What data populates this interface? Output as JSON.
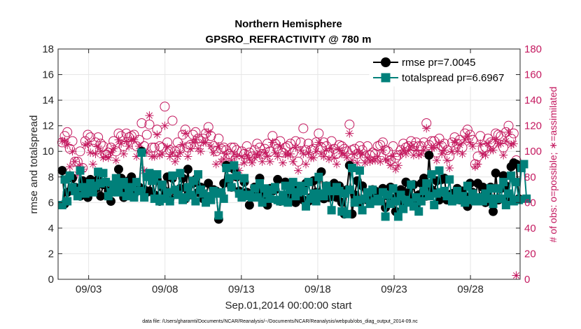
{
  "chart_data": {
    "type": "line",
    "title": "Northern Hemisphere",
    "subtitle": "GPSRO_REFRACTIVITY @ 780 m",
    "xlabel": "Sep.01,2014 00:00:00 start",
    "ylabel": "rmse and totalspread",
    "y2label": "# of obs: o=possible; ∗=assimilated",
    "footnote": "data file: /Users/gharamti/Documents/NCAR/Reanalysis/~/Documents/NCAR/Reanalysis/webpub/obs_diag_output_2014-09.nc",
    "xlim": [
      0.5,
      30.75
    ],
    "ylim": [
      0,
      18
    ],
    "y2lim": [
      0,
      180
    ],
    "x_ticks": [
      2.5,
      7.5,
      12.5,
      17.5,
      22.5,
      27.5
    ],
    "x_tick_labels": [
      "09/03",
      "09/08",
      "09/13",
      "09/18",
      "09/23",
      "09/28"
    ],
    "y_ticks": [
      0,
      2,
      4,
      6,
      8,
      10,
      12,
      14,
      16,
      18
    ],
    "y2_ticks": [
      0,
      20,
      40,
      60,
      80,
      100,
      120,
      140,
      160,
      180
    ],
    "grid": true,
    "legend": {
      "position": "top-right",
      "entries": [
        "rmse pr=7.0045",
        "totalspread pr=6.6967"
      ]
    },
    "colors": {
      "rmse": "#000000",
      "totalspread": "#00807a",
      "obs": "#c4195f",
      "grid": "#e6e6e6",
      "axis": "#262626"
    },
    "series": [
      {
        "name": "rmse",
        "axis": "left",
        "values": [
          8.5,
          5.9,
          6.8,
          8.1,
          7.9,
          7.2,
          7.0,
          6.5,
          7.7,
          6.9,
          6.4,
          7.8,
          6.9,
          7.1,
          7.8,
          6.5,
          7.4,
          7.6,
          6.9,
          6.1,
          7.2,
          7.3,
          8.6,
          7.9,
          6.4,
          7.0,
          7.7,
          8.0,
          6.6,
          6.9,
          7.2,
          10.0,
          7.0,
          6.8,
          6.9,
          8.2,
          6.6,
          7.8,
          6.1,
          7.2,
          6.9,
          8.0,
          6.3,
          7.9,
          6.9,
          6.8,
          7.1,
          7.9,
          6.3,
          8.6,
          6.6,
          7.5,
          7.8,
          6.8,
          7.2,
          6.3,
          6.4,
          7.5,
          6.5,
          7.0,
          6.9,
          4.7,
          6.7,
          7.5,
          8.9,
          7.7,
          7.2,
          8.6,
          8.0,
          6.9,
          6.5,
          7.6,
          6.8,
          5.8,
          6.6,
          7.2,
          6.9,
          7.9,
          6.3,
          6.8,
          5.8,
          7.1,
          6.9,
          7.0,
          7.8,
          6.1,
          6.2,
          7.6,
          6.4,
          6.9,
          7.3,
          6.0,
          6.7,
          7.0,
          6.2,
          7.5,
          6.1,
          6.4,
          7.7,
          6.8,
          6.5,
          8.4,
          6.3,
          7.3,
          6.4,
          6.8,
          7.5,
          6.4,
          7.3,
          6.0,
          5.1,
          7.0,
          8.9,
          5.1,
          6.6,
          7.7,
          6.0,
          7.3,
          6.3,
          6.2,
          6.5,
          7.0,
          6.9,
          6.3,
          6.8,
          7.1,
          5.6,
          6.5,
          7.2,
          6.3,
          5.3,
          6.6,
          7.0,
          5.9,
          7.6,
          6.8,
          6.2,
          7.4,
          5.9,
          6.6,
          7.5,
          7.9,
          6.5,
          9.7,
          7.0,
          6.8,
          7.7,
          6.2,
          7.8,
          7.9,
          6.2,
          6.6,
          6.7,
          6.5,
          7.1,
          6.2,
          6.9,
          6.5,
          5.7,
          7.5,
          6.8,
          6.3,
          7.5,
          6.4,
          7.2,
          6.0,
          6.6,
          7.2,
          5.3,
          8.3,
          6.2,
          7.1,
          8.1,
          7.3,
          6.3,
          8.8,
          9.1,
          9.0,
          6.3
        ]
      },
      {
        "name": "totalspread",
        "axis": "left",
        "values": [
          5.8,
          7.8,
          6.1,
          8.1,
          7.2,
          6.9,
          6.5,
          8.5,
          7.2,
          6.7,
          6.9,
          7.5,
          6.8,
          7.3,
          8.4,
          7.5,
          8.3,
          7.6,
          6.5,
          6.8,
          7.4,
          7.9,
          6.8,
          7.4,
          7.6,
          6.5,
          7.0,
          7.2,
          6.4,
          7.6,
          6.9,
          9.9,
          6.4,
          8.0,
          8.3,
          7.7,
          6.3,
          8.2,
          6.1,
          7.4,
          6.3,
          6.8,
          6.1,
          8.1,
          7.0,
          6.6,
          8.3,
          6.2,
          6.4,
          7.2,
          6.6,
          7.7,
          6.1,
          8.2,
          7.0,
          6.7,
          6.0,
          6.5,
          6.2,
          6.9,
          6.7,
          5.0,
          6.8,
          6.3,
          8.7,
          7.9,
          7.2,
          8.9,
          8.1,
          6.7,
          6.4,
          7.9,
          6.6,
          6.5,
          6.4,
          7.1,
          6.4,
          7.5,
          6.0,
          7.1,
          6.7,
          6.3,
          7.0,
          7.2,
          6.2,
          6.1,
          6.6,
          7.3,
          6.0,
          7.0,
          7.6,
          6.5,
          6.8,
          7.3,
          6.9,
          5.7,
          7.6,
          6.3,
          6.7,
          6.1,
          8.0,
          6.7,
          6.5,
          7.3,
          6.9,
          5.4,
          6.9,
          7.2,
          6.9,
          5.3,
          6.7,
          5.1,
          7.0,
          8.7,
          6.0,
          6.2,
          8.5,
          5.4,
          6.3,
          6.8,
          5.9,
          7.0,
          6.1,
          6.3,
          6.1,
          6.8,
          4.9,
          6.6,
          5.9,
          7.1,
          6.1,
          4.9,
          6.6,
          5.5,
          6.2,
          6.0,
          7.4,
          5.7,
          6.4,
          5.3,
          6.1,
          6.9,
          7.5,
          6.5,
          8.2,
          5.8,
          6.7,
          8.5,
          6.8,
          6.9,
          6.5,
          7.8,
          6.1,
          6.3,
          6.9,
          6.2,
          6.5,
          6.0,
          7.3,
          6.2,
          6.7,
          6.1,
          6.3,
          6.4,
          6.1,
          6.7,
          6.3,
          7.1,
          5.9,
          6.3,
          7.1,
          6.3,
          7.6,
          5.8,
          6.7,
          8.1,
          6.1,
          7.6,
          6.2,
          8.7,
          9.0,
          6.3
        ]
      },
      {
        "name": "obs possible",
        "axis": "right",
        "marker": "o",
        "values": [
          107,
          112,
          115,
          102,
          108,
          92,
          92,
          100,
          87,
          108,
          113,
          111,
          102,
          107,
          111,
          106,
          104,
          97,
          99,
          103,
          108,
          100,
          114,
          112,
          104,
          114,
          111,
          112,
          113,
          104,
          109,
          122,
          104,
          113,
          121,
          103,
          103,
          117,
          104,
          103,
          135,
          107,
          101,
          124,
          100,
          107,
          102,
          113,
          117,
          103,
          105,
          113,
          115,
          110,
          108,
          110,
          114,
          119,
          112,
          104,
          100,
          110,
          102,
          103,
          101,
          98,
          103,
          103,
          101,
          93,
          100,
          98,
          104,
          99,
          96,
          101,
          106,
          103,
          98,
          102,
          106,
          100,
          112,
          106,
          102,
          108,
          99,
          103,
          104,
          106,
          99,
          108,
          92,
          107,
          118,
          101,
          106,
          101,
          102,
          107,
          114,
          103,
          107,
          104,
          99,
          108,
          102,
          98,
          105,
          104,
          102,
          100,
          121,
          101,
          102,
          98,
          104,
          101,
          96,
          104,
          97,
          99,
          98,
          104,
          105,
          107,
          101,
          100,
          93,
          104,
          95,
          97,
          101,
          106,
          103,
          104,
          108,
          104,
          107,
          104,
          104,
          107,
          122,
          105,
          108,
          108,
          99,
          110,
          104,
          106,
          101,
          96,
          107,
          111,
          106,
          109,
          103,
          114,
          117,
          113,
          109,
          90,
          96,
          112,
          102,
          103,
          110,
          107,
          106,
          114,
          113,
          112,
          103,
          115,
          120,
          110,
          114,
          93
        ]
      },
      {
        "name": "obs assimilated",
        "axis": "right",
        "marker": "*",
        "values": [
          108,
          108,
          105,
          88,
          100,
          92,
          82,
          88,
          86,
          105,
          106,
          99,
          90,
          98,
          104,
          100,
          95,
          96,
          95,
          99,
          102,
          93,
          109,
          106,
          98,
          108,
          104,
          109,
          109,
          96,
          104,
          101,
          85,
          99,
          128,
          96,
          96,
          113,
          97,
          98,
          120,
          103,
          96,
          99,
          92,
          96,
          99,
          105,
          114,
          96,
          102,
          107,
          109,
          102,
          100,
          107,
          107,
          115,
          104,
          99,
          90,
          104,
          92,
          94,
          98,
          91,
          93,
          98,
          96,
          85,
          96,
          91,
          97,
          94,
          91,
          95,
          98,
          97,
          92,
          99,
          96,
          92,
          107,
          99,
          96,
          104,
          91,
          98,
          97,
          98,
          92,
          103,
          85,
          101,
          98,
          90,
          99,
          95,
          95,
          100,
          107,
          98,
          96,
          101,
          94,
          102,
          95,
          90,
          101,
          98,
          98,
          95,
          114,
          93,
          98,
          91,
          99,
          98,
          91,
          95,
          92,
          93,
          93,
          96,
          92,
          101,
          94,
          93,
          89,
          96,
          86,
          89,
          98,
          101,
          98,
          101,
          104,
          97,
          101,
          97,
          98,
          101,
          118,
          98,
          103,
          103,
          93,
          106,
          98,
          101,
          93,
          87,
          100,
          107,
          100,
          105,
          98,
          109,
          112,
          107,
          104,
          88,
          90,
          106,
          98,
          97,
          106,
          101,
          101,
          109,
          106,
          106,
          97,
          108,
          115,
          105,
          106,
          3
        ]
      }
    ]
  }
}
